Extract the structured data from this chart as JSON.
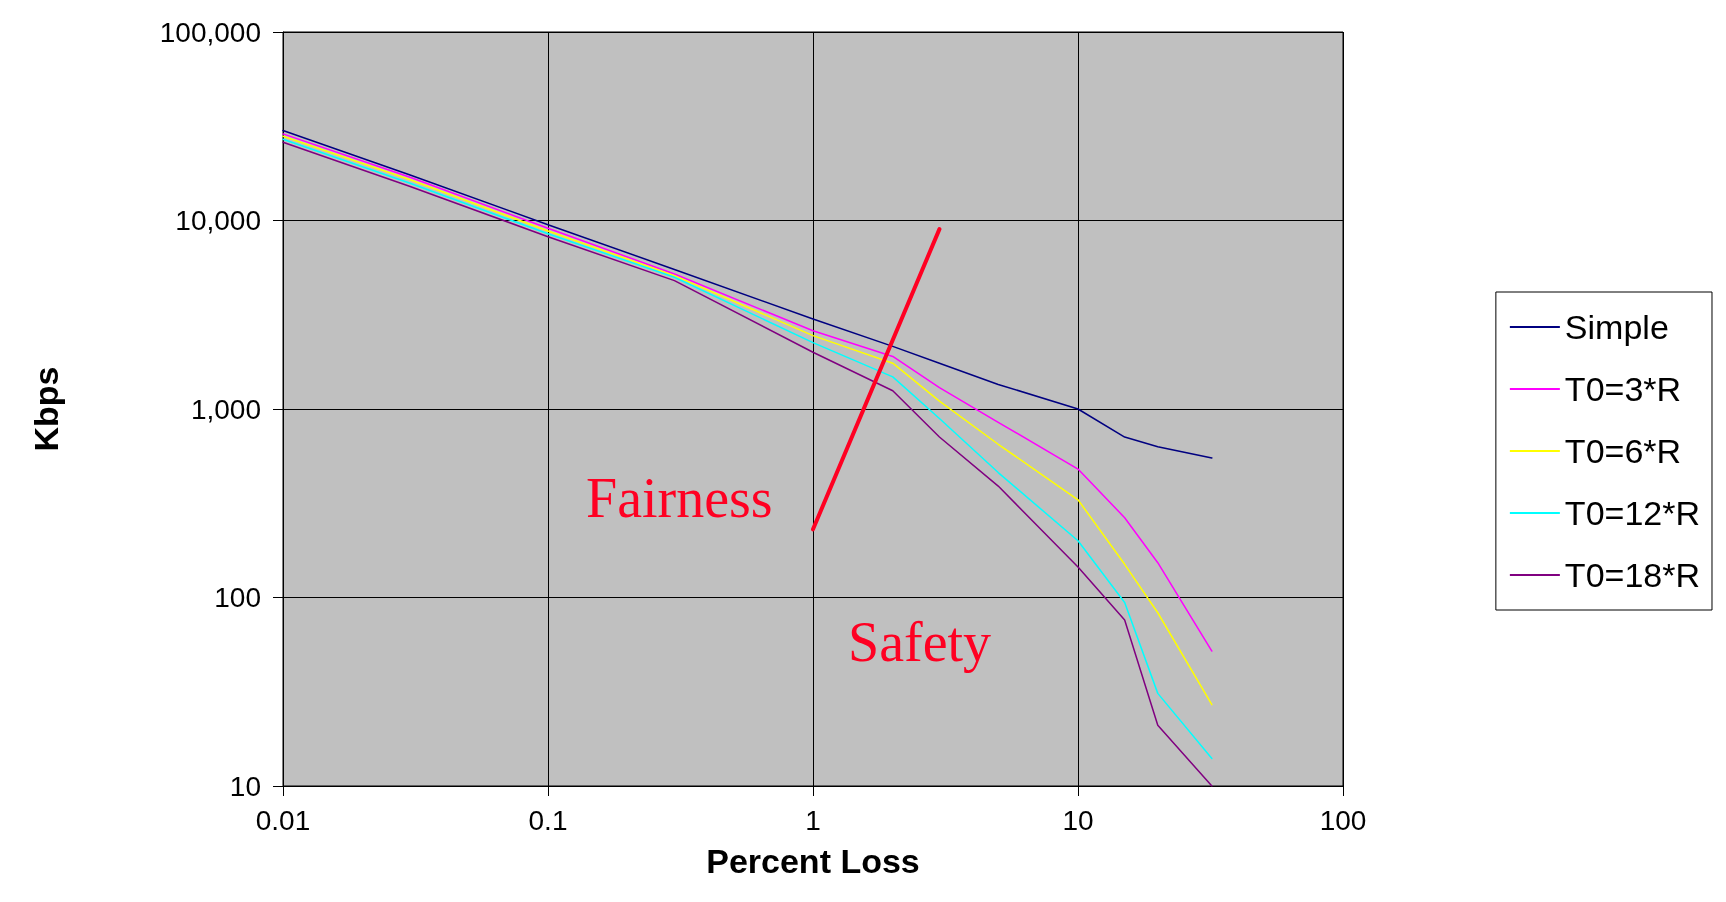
{
  "chart_data": {
    "type": "line",
    "xlabel": "Percent Loss",
    "ylabel": "Kbps",
    "log": "xy",
    "x": [
      0.01,
      0.03,
      0.1,
      0.3,
      1,
      2,
      3,
      5,
      10,
      15,
      20,
      32
    ],
    "series": [
      {
        "name": "Simple",
        "color": "#000080",
        "values": [
          30000,
          17500,
          9500,
          5500,
          3000,
          2150,
          1750,
          1350,
          1000,
          710,
          630,
          550
        ]
      },
      {
        "name": "T0=3*R",
        "color": "#ff00ff",
        "values": [
          28800,
          17000,
          9100,
          5200,
          2600,
          1900,
          1300,
          850,
          480,
          265,
          153,
          52
        ]
      },
      {
        "name": "T0=6*R",
        "color": "#ffff00",
        "values": [
          28000,
          16500,
          8800,
          5100,
          2450,
          1750,
          1100,
          650,
          330,
          150,
          83,
          27
        ]
      },
      {
        "name": "T0=12*R",
        "color": "#00ffff",
        "values": [
          27000,
          15800,
          8500,
          5000,
          2250,
          1480,
          890,
          460,
          200,
          94,
          31,
          14
        ]
      },
      {
        "name": "T0=18*R",
        "color": "#800080",
        "values": [
          26000,
          15200,
          8200,
          4800,
          2000,
          1250,
          710,
          390,
          145,
          76,
          21,
          10
        ]
      },
      {
        "color": "#ff0022",
        "x": [
          1,
          3
        ],
        "values": [
          230,
          9000
        ]
      }
    ],
    "annotations": [
      "Fairness",
      "Safety"
    ],
    "xlim": [
      0.01,
      100
    ],
    "ylim": [
      10,
      100000
    ],
    "xticks": [
      0.01,
      0.1,
      1,
      10,
      100
    ],
    "yticks": [
      10,
      100,
      {
        "value": 1000,
        "label": "1,000"
      },
      {
        "value": 10000,
        "label": "10,000"
      },
      {
        "value": 100000,
        "label": "100,000"
      }
    ],
    "grid": true,
    "legend": "right",
    "marker": "none",
    "line_style": "solid"
  }
}
